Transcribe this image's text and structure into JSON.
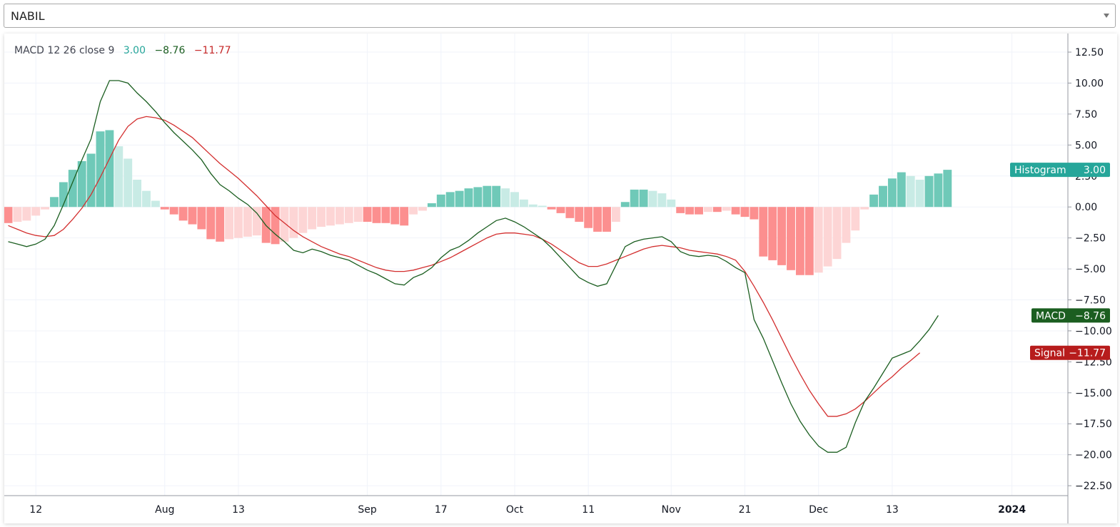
{
  "symbol_select": {
    "value": "NABIL"
  },
  "colors": {
    "macd": "#1b5e20",
    "signal": "#d32f2f",
    "hist_pos_strong": "#6fc9b8",
    "hist_pos_weak": "#c8ebe5",
    "hist_neg_strong": "#fc8f8f",
    "hist_neg_weak": "#fdd5d5",
    "histogram_tag": "#26a69a",
    "macd_tag": "#1b5e20",
    "signal_tag": "#b71c1c",
    "grid": "#f0f3fa"
  },
  "legend": {
    "label": "MACD 12 26 close 9",
    "histogram_value": "3.00",
    "macd_value": "−8.76",
    "signal_value": "−11.77"
  },
  "tags": {
    "histogram_label": "Histogram",
    "histogram_value": "3.00",
    "macd_label": "MACD",
    "macd_value": "−8.76",
    "signal_label": "Signal",
    "signal_value": "−11.77"
  },
  "chart_data": {
    "type": "line",
    "title": "",
    "xlabel": "",
    "ylabel": "",
    "ylim": [
      -23.3,
      14.0
    ],
    "y_ticks": [
      12.5,
      10,
      7.5,
      5,
      2.5,
      0,
      -2.5,
      -5,
      -7.5,
      -10,
      -12.5,
      -15,
      -17.5,
      -20,
      -22.5
    ],
    "y_tick_labels": [
      "12.50",
      "10.00",
      "7.50",
      "5.00",
      "2.50",
      "0.00",
      "−2.50",
      "−5.00",
      "−7.50",
      "−10.00",
      "−12.50",
      "−15.00",
      "−17.50",
      "−20.00",
      "−22.50"
    ],
    "x_ticks": [
      {
        "label": "12",
        "index": 3
      },
      {
        "label": "Aug",
        "index": 17
      },
      {
        "label": "13",
        "index": 25
      },
      {
        "label": "Sep",
        "index": 39
      },
      {
        "label": "17",
        "index": 47
      },
      {
        "label": "Oct",
        "index": 55
      },
      {
        "label": "11",
        "index": 63
      },
      {
        "label": "Nov",
        "index": 72
      },
      {
        "label": "21",
        "index": 80
      },
      {
        "label": "Dec",
        "index": 88
      },
      {
        "label": "13",
        "index": 96
      },
      {
        "label": "2024",
        "index": 109
      }
    ],
    "series": [
      {
        "name": "MACD",
        "values": [
          -2.8,
          -3.0,
          -3.2,
          -3.0,
          -2.6,
          -1.5,
          0.2,
          2.0,
          3.8,
          5.5,
          8.5,
          10.2,
          10.2,
          10.0,
          9.2,
          8.5,
          7.7,
          6.8,
          6.0,
          5.3,
          4.6,
          3.8,
          2.7,
          1.8,
          1.3,
          0.7,
          0.2,
          -0.5,
          -1.5,
          -2.2,
          -2.8,
          -3.5,
          -3.7,
          -3.4,
          -3.6,
          -3.9,
          -4.1,
          -4.3,
          -4.7,
          -5.1,
          -5.4,
          -5.8,
          -6.2,
          -6.3,
          -5.7,
          -5.4,
          -4.9,
          -4.1,
          -3.5,
          -3.2,
          -2.7,
          -2.1,
          -1.6,
          -1.1,
          -0.9,
          -1.2,
          -1.6,
          -2.1,
          -2.6,
          -3.3,
          -4.1,
          -4.9,
          -5.7,
          -6.1,
          -6.4,
          -6.2,
          -4.7,
          -3.2,
          -2.8,
          -2.6,
          -2.5,
          -2.4,
          -2.8,
          -3.6,
          -3.9,
          -4.0,
          -3.9,
          -4.0,
          -4.4,
          -4.9,
          -5.3,
          -9.1,
          -10.6,
          -12.4,
          -14.2,
          -15.9,
          -17.3,
          -18.4,
          -19.3,
          -19.8,
          -19.8,
          -19.4,
          -17.4,
          -15.7,
          -14.6,
          -13.4,
          -12.2,
          -11.9,
          -11.6,
          -10.8,
          -9.9,
          -8.76
        ]
      },
      {
        "name": "Signal",
        "values": [
          -1.5,
          -1.8,
          -2.1,
          -2.3,
          -2.4,
          -2.3,
          -1.8,
          -1.0,
          -0.1,
          1.0,
          2.4,
          3.9,
          5.4,
          6.5,
          7.1,
          7.3,
          7.2,
          7.0,
          6.6,
          6.1,
          5.6,
          4.9,
          4.2,
          3.5,
          2.9,
          2.3,
          1.6,
          0.9,
          0.1,
          -0.7,
          -1.3,
          -1.9,
          -2.4,
          -2.8,
          -3.2,
          -3.5,
          -3.8,
          -4.0,
          -4.3,
          -4.6,
          -4.9,
          -5.1,
          -5.2,
          -5.2,
          -5.1,
          -4.9,
          -4.7,
          -4.4,
          -4.1,
          -3.7,
          -3.3,
          -2.9,
          -2.5,
          -2.2,
          -2.1,
          -2.1,
          -2.2,
          -2.3,
          -2.6,
          -3.0,
          -3.5,
          -4.0,
          -4.5,
          -4.8,
          -4.8,
          -4.6,
          -4.3,
          -4.0,
          -3.7,
          -3.4,
          -3.2,
          -3.1,
          -3.2,
          -3.3,
          -3.5,
          -3.6,
          -3.7,
          -3.8,
          -4.0,
          -4.3,
          -5.2,
          -6.4,
          -7.7,
          -9.1,
          -10.6,
          -12.1,
          -13.5,
          -14.8,
          -15.9,
          -16.9,
          -16.9,
          -16.7,
          -16.3,
          -15.7,
          -15.0,
          -14.3,
          -13.7,
          -13.0,
          -12.4,
          -11.77
        ]
      },
      {
        "name": "Histogram",
        "values": [
          -1.3,
          -1.2,
          -1.1,
          -0.7,
          -0.2,
          0.8,
          2.0,
          3.0,
          3.7,
          4.3,
          6.1,
          6.2,
          4.9,
          3.9,
          2.2,
          1.3,
          0.5,
          -0.2,
          -0.6,
          -1.1,
          -1.4,
          -1.8,
          -2.6,
          -2.8,
          -2.6,
          -2.5,
          -2.4,
          -2.3,
          -2.9,
          -3.0,
          -2.8,
          -2.5,
          -2.1,
          -1.8,
          -1.6,
          -1.5,
          -1.4,
          -1.3,
          -1.2,
          -1.2,
          -1.3,
          -1.3,
          -1.4,
          -1.5,
          -0.6,
          -0.3,
          0.3,
          1.0,
          1.2,
          1.3,
          1.5,
          1.6,
          1.7,
          1.7,
          1.5,
          1.2,
          0.6,
          0.2,
          0.1,
          -0.2,
          -0.5,
          -0.9,
          -1.2,
          -1.7,
          -2.0,
          -2.0,
          -1.2,
          0.4,
          1.4,
          1.4,
          1.3,
          1.1,
          0.6,
          -0.5,
          -0.6,
          -0.6,
          -0.4,
          -0.4,
          -0.3,
          -0.6,
          -0.8,
          -1.0,
          -4.0,
          -4.3,
          -4.7,
          -5.1,
          -5.5,
          -5.5,
          -5.3,
          -4.8,
          -4.2,
          -2.9,
          -1.9,
          -0.2,
          1.0,
          1.7,
          2.3,
          2.8,
          2.5,
          2.2,
          2.5,
          2.7,
          3.0
        ]
      }
    ],
    "legend_position": "top-left",
    "grid": true
  }
}
